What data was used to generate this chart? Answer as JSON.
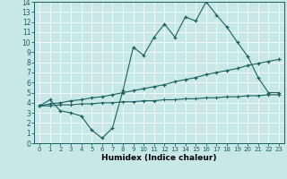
{
  "xlabel": "Humidex (Indice chaleur)",
  "bg_color": "#c8e8e8",
  "line_color": "#1a6060",
  "xlim": [
    -0.5,
    23.5
  ],
  "ylim": [
    0,
    14
  ],
  "xticks": [
    0,
    1,
    2,
    3,
    4,
    5,
    6,
    7,
    8,
    9,
    10,
    11,
    12,
    13,
    14,
    15,
    16,
    17,
    18,
    19,
    20,
    21,
    22,
    23
  ],
  "yticks": [
    0,
    1,
    2,
    3,
    4,
    5,
    6,
    7,
    8,
    9,
    10,
    11,
    12,
    13,
    14
  ],
  "line1_x": [
    0,
    1,
    2,
    3,
    4,
    5,
    6,
    7,
    8,
    9,
    10,
    11,
    12,
    13,
    14,
    15,
    16,
    17,
    18,
    19,
    20,
    21,
    22,
    23
  ],
  "line1_y": [
    3.7,
    4.3,
    3.2,
    3.0,
    2.7,
    1.3,
    0.5,
    1.5,
    5.2,
    9.5,
    8.7,
    10.5,
    11.8,
    10.5,
    12.5,
    12.1,
    14.0,
    12.7,
    11.5,
    10.0,
    8.6,
    6.5,
    5.0,
    5.0
  ],
  "line2_x": [
    0,
    1,
    2,
    3,
    4,
    5,
    6,
    7,
    8,
    9,
    10,
    11,
    12,
    13,
    14,
    15,
    16,
    17,
    18,
    19,
    20,
    21,
    22,
    23
  ],
  "line2_y": [
    3.7,
    3.9,
    4.0,
    4.2,
    4.3,
    4.5,
    4.6,
    4.8,
    5.0,
    5.2,
    5.4,
    5.6,
    5.8,
    6.1,
    6.3,
    6.5,
    6.8,
    7.0,
    7.2,
    7.4,
    7.7,
    7.9,
    8.1,
    8.3
  ],
  "line3_x": [
    0,
    1,
    2,
    3,
    4,
    5,
    6,
    7,
    8,
    9,
    10,
    11,
    12,
    13,
    14,
    15,
    16,
    17,
    18,
    19,
    20,
    21,
    22,
    23
  ],
  "line3_y": [
    3.7,
    3.7,
    3.8,
    3.8,
    3.9,
    3.9,
    4.0,
    4.0,
    4.1,
    4.1,
    4.2,
    4.2,
    4.3,
    4.3,
    4.4,
    4.4,
    4.5,
    4.5,
    4.6,
    4.6,
    4.7,
    4.7,
    4.8,
    4.8
  ],
  "grid_color": "#b0d8d8",
  "tick_fontsize": 5.5,
  "xlabel_fontsize": 6.5
}
